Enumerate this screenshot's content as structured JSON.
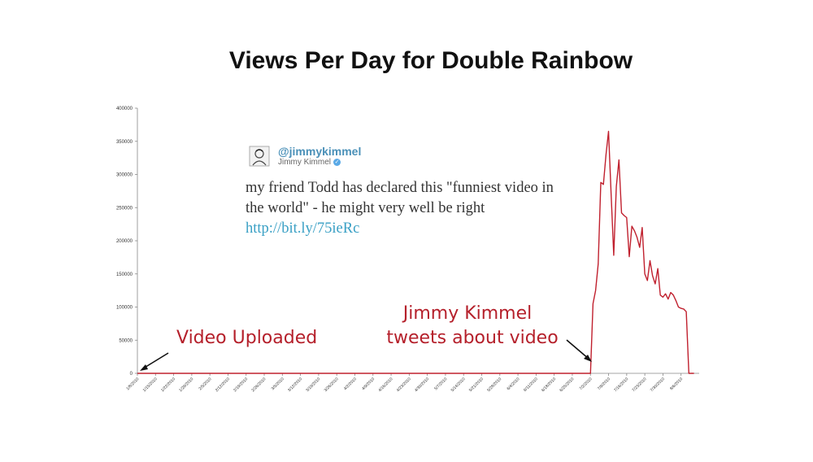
{
  "slide": {
    "title": "Views Per Day for Double Rainbow"
  },
  "tweet": {
    "handle": "@jimmykimmel",
    "name": "Jimmy Kimmel",
    "text": "my friend Todd has declared this \"funniest video in the world\" - he might very well be right ",
    "link": "http://bit.ly/75ieRc",
    "handle_color": "#4a90b8",
    "link_color": "#3aa0c5"
  },
  "annotations": {
    "uploaded": "Video Uploaded",
    "kimmel_line1": "Jimmy Kimmel",
    "kimmel_line2": "tweets about video",
    "color": "#b5202b"
  },
  "chart_data": {
    "type": "line",
    "title": "Views Per Day for Double Rainbow",
    "xlabel": "",
    "ylabel": "",
    "ylim": [
      0,
      400000
    ],
    "y_ticks": [
      0,
      50000,
      100000,
      150000,
      200000,
      250000,
      300000,
      350000,
      400000
    ],
    "x_ticks": [
      "1/8/2010",
      "1/15/2010",
      "1/22/2010",
      "1/29/2010",
      "2/5/2010",
      "2/12/2010",
      "2/19/2010",
      "2/26/2010",
      "3/5/2010",
      "3/12/2010",
      "3/19/2010",
      "3/26/2010",
      "4/2/2010",
      "4/9/2010",
      "4/16/2010",
      "4/23/2010",
      "4/30/2010",
      "5/7/2010",
      "5/14/2010",
      "5/21/2010",
      "5/28/2010",
      "6/4/2010",
      "6/11/2010",
      "6/18/2010",
      "6/25/2010",
      "7/2/2010",
      "7/9/2010",
      "7/16/2010",
      "7/23/2010",
      "7/30/2010",
      "8/6/2010"
    ],
    "xlim": [
      "1/8/2010",
      "8/13/2010"
    ],
    "line_color": "#c0202e",
    "grid": false,
    "series": [
      {
        "x": [
          "1/8/2010",
          "7/2/2010",
          "7/3/2010",
          "7/4/2010",
          "7/5/2010",
          "7/6/2010",
          "7/7/2010",
          "7/8/2010",
          "7/9/2010",
          "7/10/2010",
          "7/11/2010",
          "7/12/2010",
          "7/13/2010",
          "7/14/2010",
          "7/15/2010",
          "7/16/2010",
          "7/17/2010",
          "7/18/2010",
          "7/19/2010",
          "7/20/2010",
          "7/21/2010",
          "7/22/2010",
          "7/23/2010",
          "7/24/2010",
          "7/25/2010",
          "7/26/2010",
          "7/27/2010",
          "7/28/2010",
          "7/29/2010",
          "7/30/2010",
          "7/31/2010",
          "8/1/2010",
          "8/2/2010",
          "8/3/2010",
          "8/4/2010",
          "8/5/2010",
          "8/6/2010",
          "8/7/2010",
          "8/8/2010",
          "8/9/2010",
          "8/10/2010",
          "8/11/2010"
        ],
        "y": [
          0,
          0,
          105000,
          125000,
          165000,
          288000,
          285000,
          330000,
          365000,
          270000,
          178000,
          282000,
          322000,
          242000,
          238000,
          235000,
          176000,
          222000,
          215000,
          205000,
          190000,
          220000,
          150000,
          140000,
          170000,
          147000,
          135000,
          158000,
          118000,
          115000,
          120000,
          112000,
          122000,
          118000,
          110000,
          100000,
          98000,
          97000,
          93000,
          0,
          0,
          0
        ]
      }
    ]
  }
}
